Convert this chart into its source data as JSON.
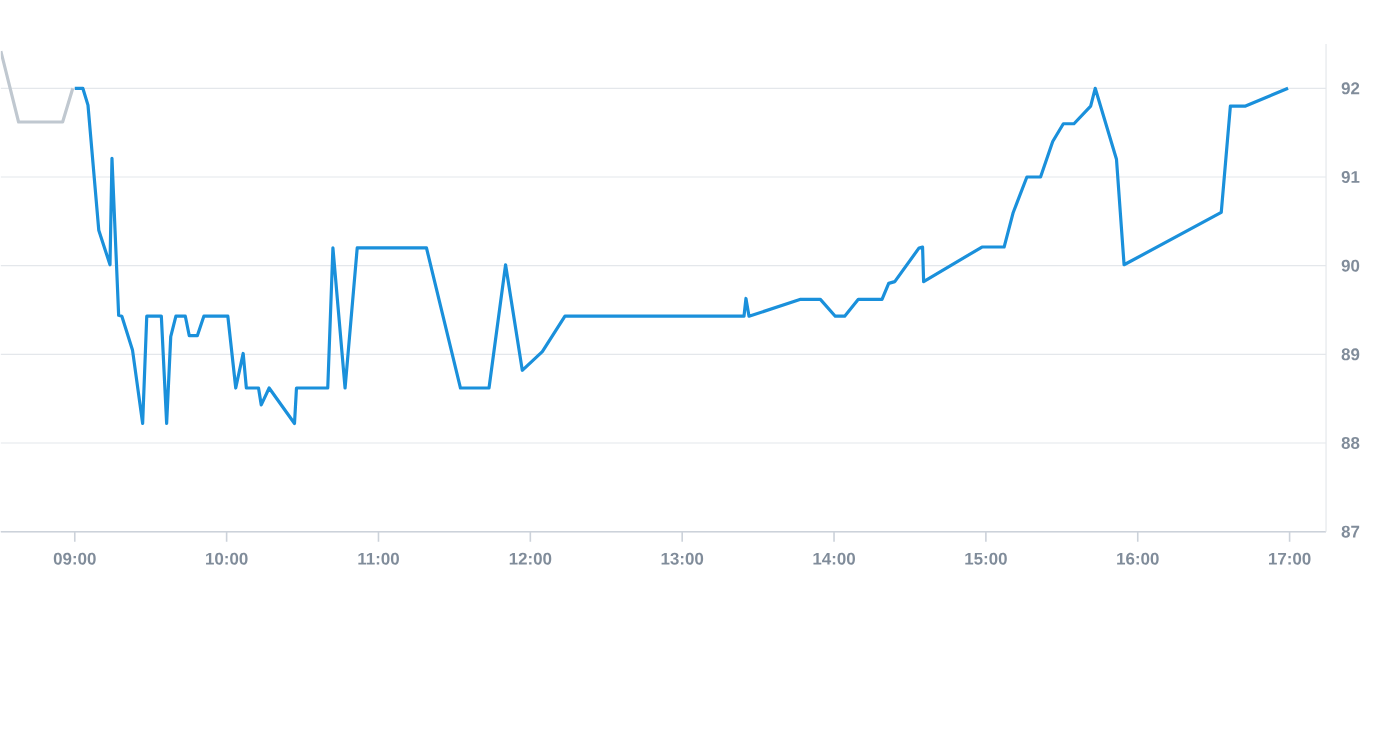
{
  "chart_data": {
    "type": "line",
    "xlim": [
      8.513,
      17.24
    ],
    "ylim": [
      87,
      92.5
    ],
    "xticks": [
      {
        "value": 9,
        "label": "09:00"
      },
      {
        "value": 10,
        "label": "10:00"
      },
      {
        "value": 11,
        "label": "11:00"
      },
      {
        "value": 12,
        "label": "12:00"
      },
      {
        "value": 13,
        "label": "13:00"
      },
      {
        "value": 14,
        "label": "14:00"
      },
      {
        "value": 15,
        "label": "15:00"
      },
      {
        "value": 16,
        "label": "16:00"
      },
      {
        "value": 17,
        "label": "17:00"
      }
    ],
    "yticks": [
      87,
      88,
      89,
      90,
      91,
      92
    ],
    "grid": "y",
    "marker": "none",
    "line_style": "solid",
    "series": [
      {
        "color": "#c0c8d0",
        "x": [
          8.513,
          8.63,
          8.92,
          8.987
        ],
        "values": [
          92.42,
          91.62,
          91.62,
          92
        ]
      },
      {
        "color": "#1a90db",
        "x": [
          9.0,
          9.053,
          9.087,
          9.158,
          9.232,
          9.245,
          9.289,
          9.31,
          9.38,
          9.447,
          9.474,
          9.57,
          9.605,
          9.632,
          9.666,
          9.728,
          9.754,
          9.807,
          9.85,
          10.008,
          10.06,
          10.109,
          10.13,
          10.21,
          10.228,
          10.28,
          10.447,
          10.46,
          10.666,
          10.7,
          10.78,
          10.86,
          11.316,
          11.54,
          11.728,
          11.837,
          11.947,
          12.079,
          12.228,
          13.407,
          13.42,
          13.44,
          13.78,
          13.91,
          14.008,
          14.07,
          14.16,
          14.316,
          14.36,
          14.4,
          14.56,
          14.583,
          14.59,
          14.974,
          15.12,
          15.18,
          15.27,
          15.36,
          15.44,
          15.51,
          15.58,
          15.69,
          15.72,
          15.86,
          15.91,
          16.55,
          16.61,
          16.71,
          16.99
        ],
        "values": [
          92,
          92,
          91.81,
          90.4,
          90.01,
          91.21,
          89.44,
          89.43,
          89.05,
          88.22,
          89.43,
          89.43,
          88.22,
          89.2,
          89.43,
          89.43,
          89.21,
          89.21,
          89.43,
          89.43,
          88.62,
          89.01,
          88.62,
          88.62,
          88.43,
          88.62,
          88.22,
          88.62,
          88.62,
          90.2,
          88.62,
          90.2,
          90.2,
          88.62,
          88.62,
          90.01,
          88.82,
          89.03,
          89.43,
          89.43,
          89.63,
          89.43,
          89.62,
          89.62,
          89.43,
          89.43,
          89.62,
          89.62,
          89.8,
          89.82,
          90.2,
          90.21,
          89.82,
          90.21,
          90.21,
          90.6,
          91.0,
          91.0,
          91.4,
          91.6,
          91.6,
          91.8,
          92.0,
          91.2,
          90.01,
          90.6,
          91.8,
          91.8,
          92.0
        ]
      }
    ]
  }
}
